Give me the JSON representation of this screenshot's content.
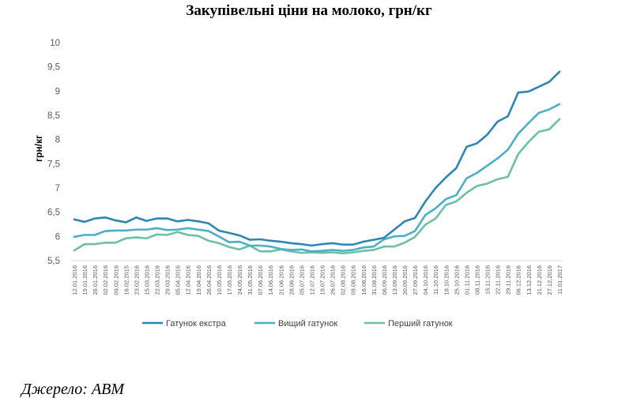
{
  "chart_data": {
    "type": "line",
    "title": "Закупівельні ціни на молоко, грн/кг",
    "ylabel": "грн/кг",
    "xlabel": "",
    "ylim": [
      5.5,
      10
    ],
    "yticks": [
      "5,5",
      "6",
      "6,5",
      "7",
      "7,5",
      "8",
      "8,5",
      "9",
      "9,5",
      "10"
    ],
    "grid": false,
    "legend_position": "bottom",
    "x": [
      "12.01.2016",
      "19.01.2016",
      "26.01.2016",
      "02.02.2016",
      "09.02.2016",
      "16.02.2015",
      "23.02.2016",
      "15.03.2016",
      "22.03.2016",
      "29.03.2016",
      "05.04.2016",
      "12.04.2016",
      "19.04.2016",
      "26.04.2016",
      "10.05.2016",
      "17.05.2016",
      "24.05.2016",
      "31.05.2016",
      "07.06.2016",
      "14.06.2016",
      "21.06.2016",
      "28.06.2016",
      "05.07.2016",
      "12.07.2016",
      "19.07.2016",
      "26.07.2016",
      "02.08.2016",
      "09.08.2016",
      "16.08.2016",
      "31.08.2016",
      "06.09.2016",
      "13.09.2016",
      "20.09.2016",
      "27.09.2016",
      "04.10.2016",
      "11.10.2016",
      "18.10.2016",
      "25.10.2016",
      "01.11.2016",
      "08.11.2016",
      "15.11.2016",
      "22.11.2016",
      "29.11.2016",
      "06.12.2016",
      "13.12.2016",
      "21.12.2016",
      "27.12.2016",
      "11.01.2017"
    ],
    "series": [
      {
        "name": "Гатунок екстра",
        "color": "#2e86b3",
        "values": [
          6.35,
          6.3,
          6.37,
          6.39,
          6.33,
          6.29,
          6.39,
          6.32,
          6.37,
          6.37,
          6.31,
          6.34,
          6.31,
          6.27,
          6.12,
          6.07,
          6.02,
          5.93,
          5.94,
          5.91,
          5.89,
          5.86,
          5.84,
          5.81,
          5.84,
          5.86,
          5.83,
          5.83,
          5.89,
          5.93,
          5.97,
          6.14,
          6.31,
          6.38,
          6.72,
          7.0,
          7.22,
          7.41,
          7.85,
          7.92,
          8.1,
          8.37,
          8.48,
          8.97,
          8.99,
          9.09,
          9.19,
          9.4
        ]
      },
      {
        "name": "Вищий гатунок",
        "color": "#4bb0c4",
        "values": [
          5.99,
          6.03,
          6.03,
          6.11,
          6.12,
          6.12,
          6.14,
          6.14,
          6.17,
          6.13,
          6.14,
          6.17,
          6.14,
          6.11,
          6.0,
          5.88,
          5.89,
          5.81,
          5.81,
          5.79,
          5.74,
          5.72,
          5.73,
          5.69,
          5.7,
          5.72,
          5.7,
          5.72,
          5.77,
          5.79,
          5.94,
          6.0,
          6.01,
          6.11,
          6.44,
          6.58,
          6.77,
          6.85,
          7.2,
          7.31,
          7.46,
          7.61,
          7.79,
          8.12,
          8.34,
          8.55,
          8.62,
          8.73
        ]
      },
      {
        "name": "Перший гатунок",
        "color": "#6cc0a4",
        "values": [
          5.71,
          5.84,
          5.84,
          5.87,
          5.87,
          5.96,
          5.98,
          5.96,
          6.04,
          6.03,
          6.09,
          6.03,
          6.01,
          5.91,
          5.86,
          5.78,
          5.73,
          5.81,
          5.69,
          5.69,
          5.73,
          5.69,
          5.66,
          5.67,
          5.66,
          5.67,
          5.65,
          5.67,
          5.7,
          5.72,
          5.79,
          5.79,
          5.87,
          5.99,
          6.24,
          6.37,
          6.65,
          6.72,
          6.9,
          7.04,
          7.09,
          7.18,
          7.23,
          7.7,
          7.95,
          8.16,
          8.21,
          8.42
        ]
      }
    ]
  },
  "source_note": "Джерело: АВМ"
}
